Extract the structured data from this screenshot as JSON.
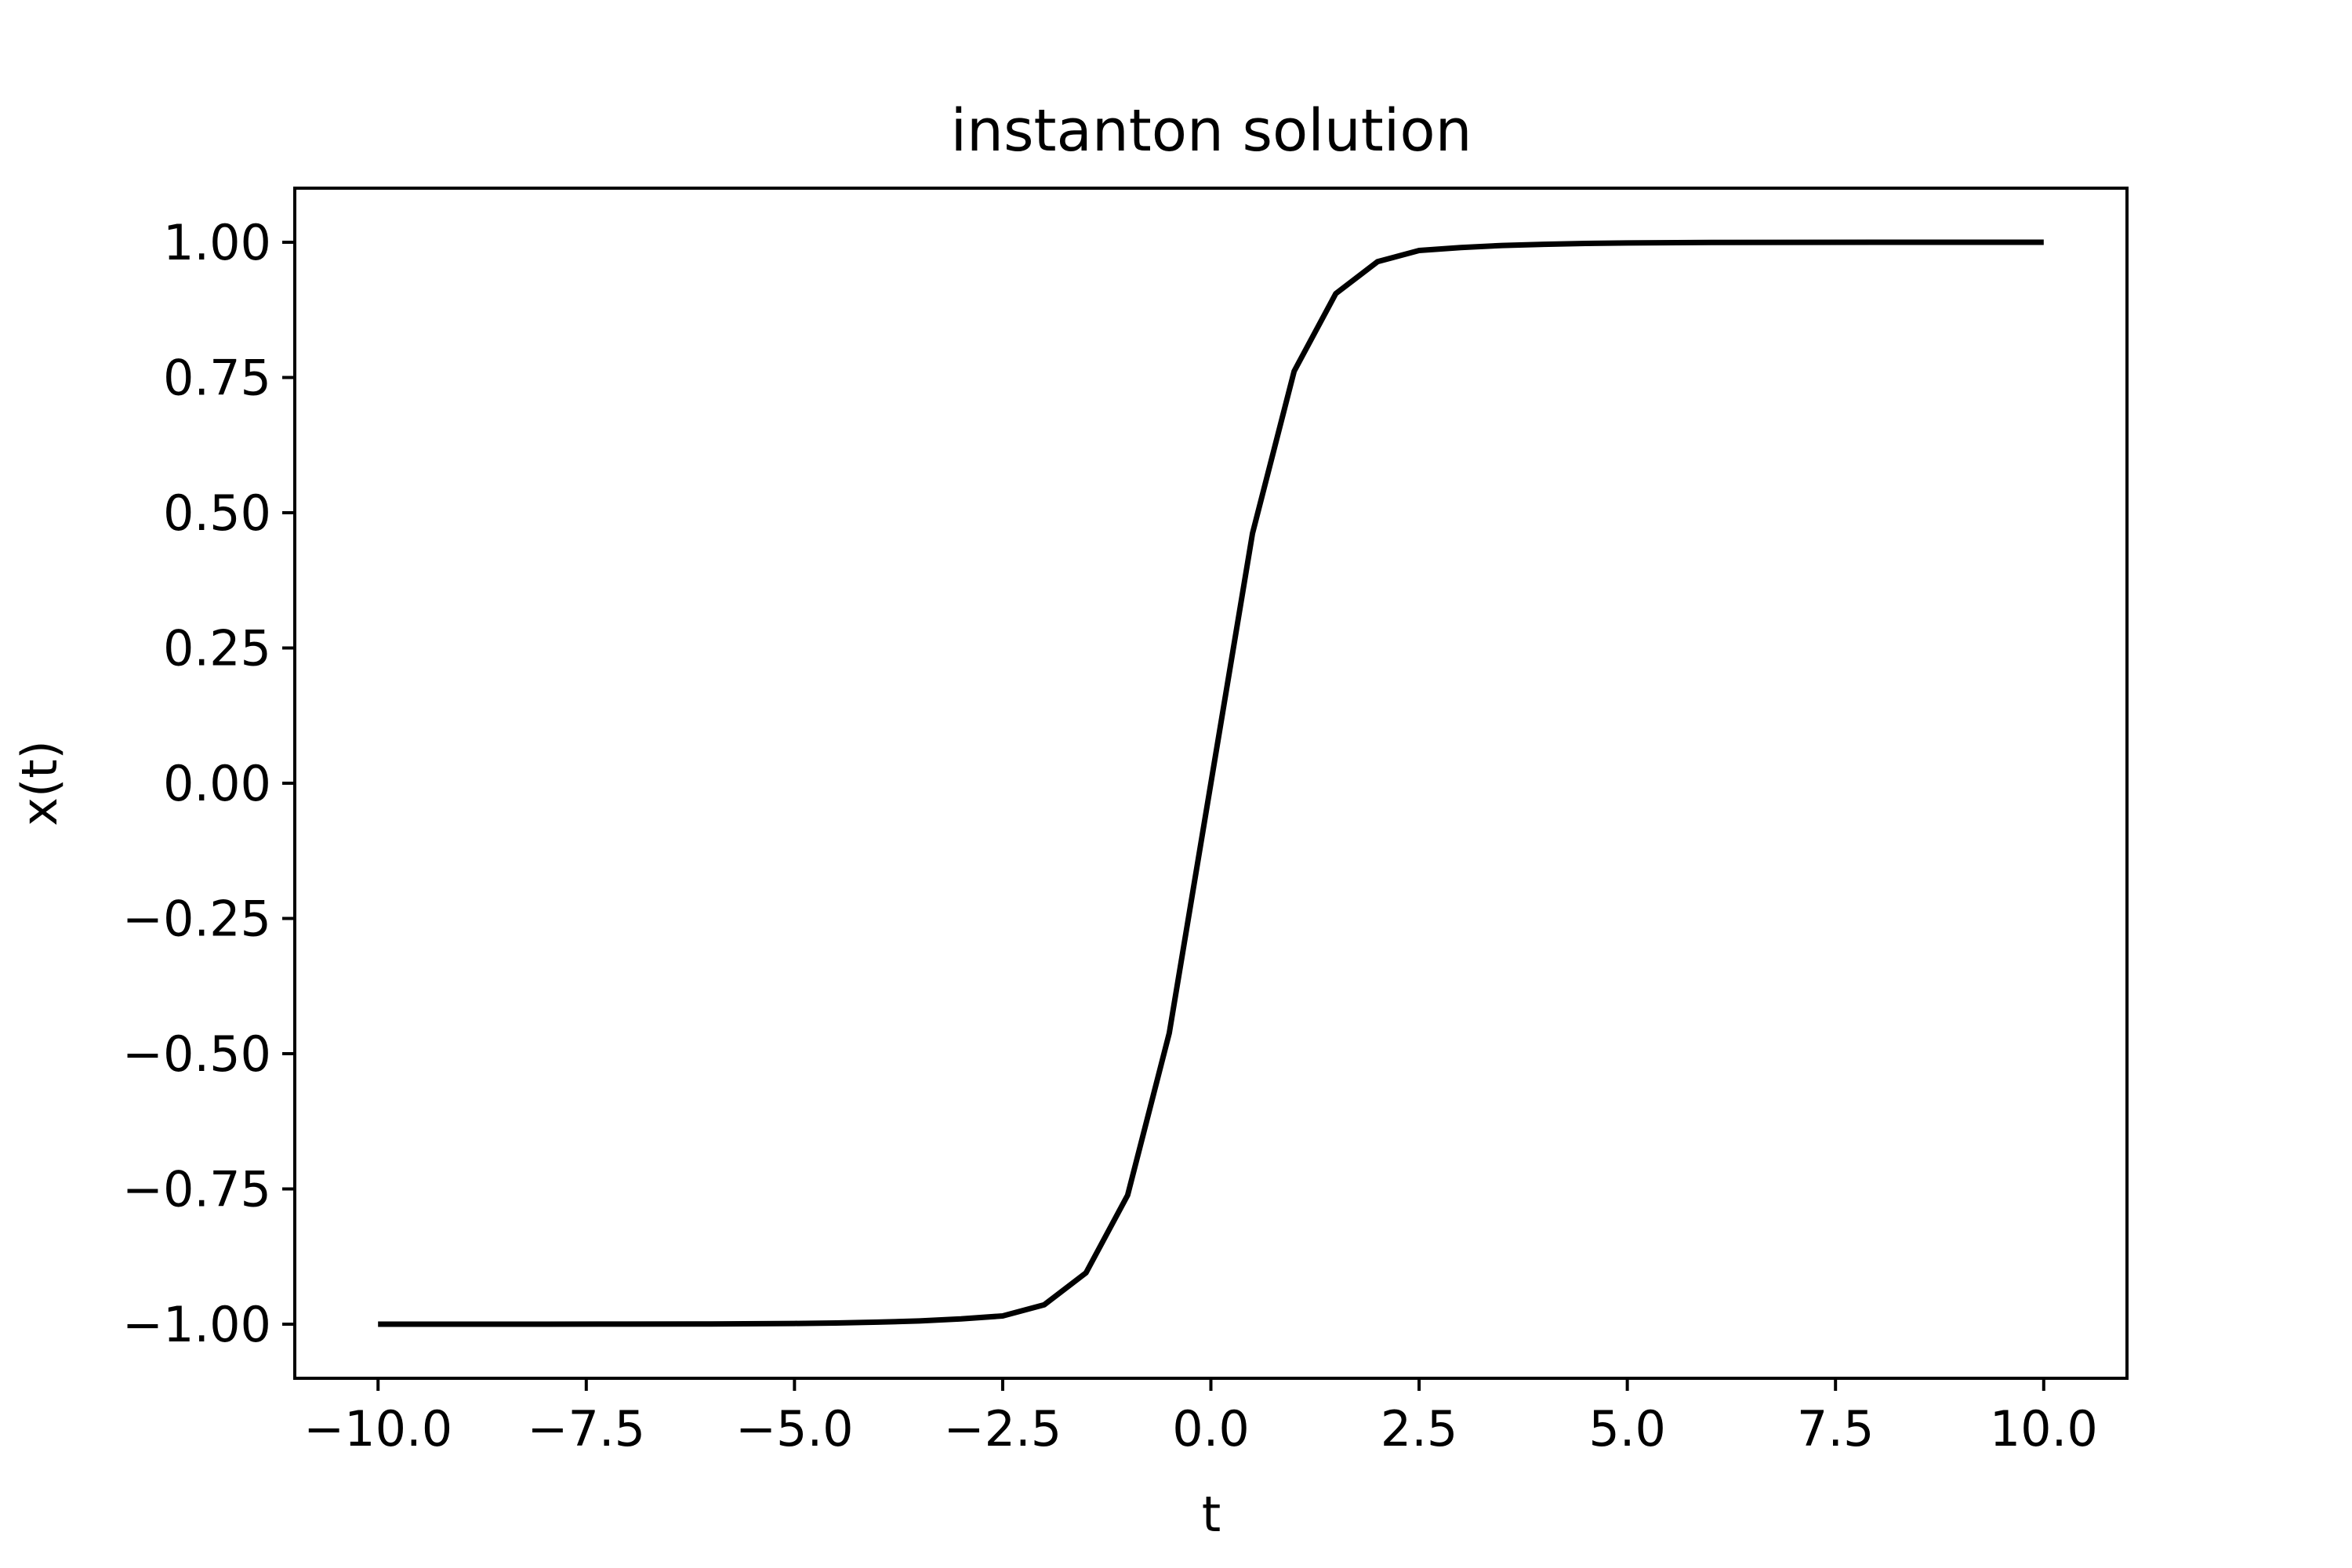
{
  "chart_data": {
    "type": "line",
    "title": "instanton solution",
    "xlabel": "t",
    "ylabel": "x(t)",
    "xlim": [
      -11,
      11
    ],
    "ylim": [
      -1.1,
      1.1
    ],
    "xticks": [
      -10.0,
      -7.5,
      -5.0,
      -2.5,
      0.0,
      2.5,
      5.0,
      7.5,
      10.0
    ],
    "xtick_labels": [
      "−10.0",
      "−7.5",
      "−5.0",
      "−2.5",
      "0.0",
      "2.5",
      "5.0",
      "7.5",
      "10.0"
    ],
    "yticks": [
      1.0,
      0.75,
      0.5,
      0.25,
      0.0,
      -0.25,
      -0.5,
      -0.75,
      -1.0
    ],
    "ytick_labels": [
      "1.00",
      "0.75",
      "0.50",
      "0.25",
      "0.00",
      "−0.25",
      "−0.50",
      "−0.75",
      "−1.00"
    ],
    "grid": false,
    "series": [
      {
        "color": "#000000",
        "x": [
          -10,
          -9,
          -8,
          -7,
          -6,
          -5,
          -4.5,
          -4,
          -3.5,
          -3,
          -2.5,
          -2,
          -1.5,
          -1,
          -0.5,
          0,
          0.5,
          1,
          1.5,
          2,
          2.5,
          3,
          3.5,
          4,
          4.5,
          5,
          6,
          7,
          8,
          9,
          10
        ],
        "y": [
          -1.0,
          -1.0,
          -1.0,
          -0.9998,
          -0.9995,
          -0.9987,
          -0.9978,
          -0.9963,
          -0.994,
          -0.9903,
          -0.9848,
          -0.964,
          -0.9051,
          -0.7616,
          -0.4621,
          0.0,
          0.4621,
          0.7616,
          0.9051,
          0.964,
          0.9848,
          0.9903,
          0.994,
          0.9963,
          0.9978,
          0.9987,
          0.9995,
          0.9998,
          1.0,
          1.0,
          1.0
        ]
      }
    ]
  }
}
